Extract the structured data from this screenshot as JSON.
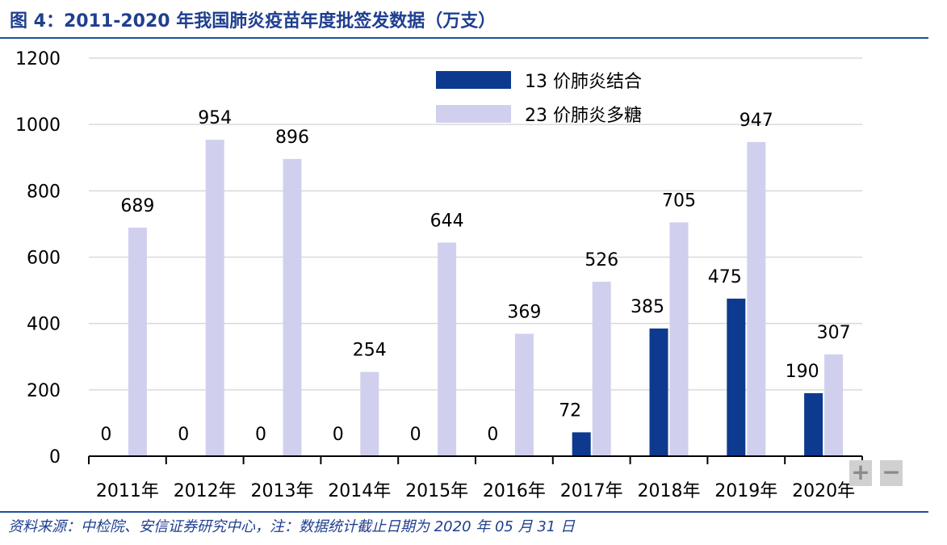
{
  "title": "图 4：2011-2020 年我国肺炎疫苗年度批签发数据（万支）",
  "source": "资料来源：中检院、安信证券研究中心，注：数据统计截止日期为 2020 年 05 月 31 日",
  "controls": {
    "zoom_in": "+",
    "zoom_out": "−"
  },
  "colors": {
    "title": "#1f3f8f",
    "series13": "#0d3a8f",
    "series23": "#d0d0ee",
    "grid": "#d9d9d9"
  },
  "chart_data": {
    "type": "bar",
    "categories": [
      "2011年",
      "2012年",
      "2013年",
      "2014年",
      "2015年",
      "2016年",
      "2017年",
      "2018年",
      "2019年",
      "2020年"
    ],
    "series": [
      {
        "name": "13 价肺炎结合",
        "values": [
          0,
          0,
          0,
          0,
          0,
          0,
          72,
          385,
          475,
          190
        ]
      },
      {
        "name": "23 价肺炎多糖",
        "values": [
          689,
          954,
          896,
          254,
          644,
          369,
          526,
          705,
          947,
          307
        ]
      }
    ],
    "ylim": [
      0,
      1200
    ],
    "yticks": [
      "0",
      "200",
      "400",
      "600",
      "800",
      "1000",
      "1200"
    ],
    "grid": true,
    "legend": "top-right"
  }
}
